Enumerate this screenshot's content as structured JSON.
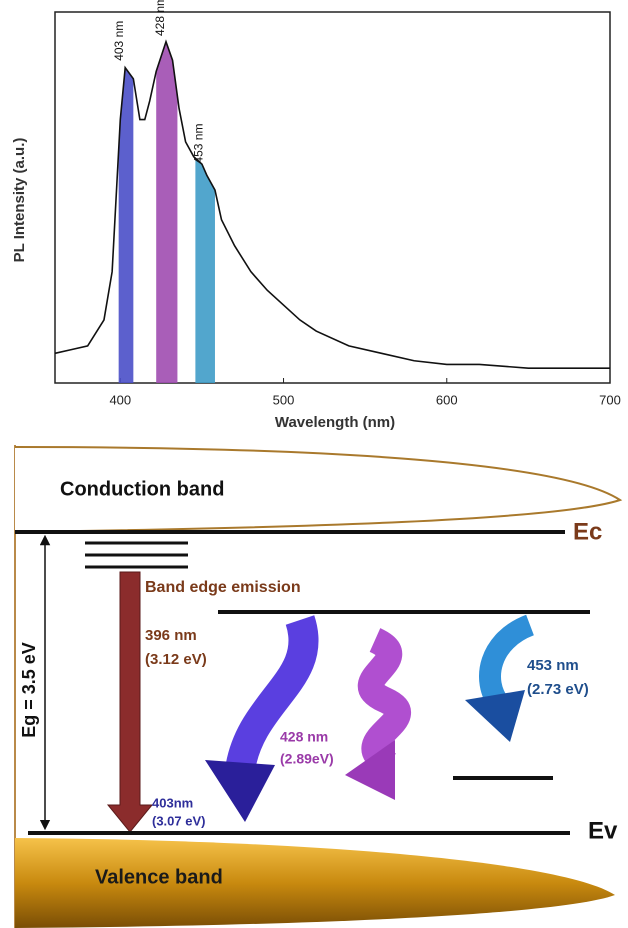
{
  "chart_data": {
    "type": "line",
    "xlabel": "Wavelength (nm)",
    "ylabel": "PL Intensity (a.u.)",
    "xlim": [
      360,
      700
    ],
    "xticks": [
      400,
      500,
      600,
      700
    ],
    "ylim": [
      0,
      1
    ],
    "x": [
      360,
      370,
      380,
      390,
      395,
      400,
      403,
      408,
      412,
      415,
      418,
      422,
      428,
      432,
      436,
      440,
      445,
      450,
      453,
      458,
      462,
      470,
      480,
      490,
      500,
      510,
      520,
      540,
      560,
      580,
      600,
      620,
      650,
      680,
      700
    ],
    "series": [
      {
        "color": "#111111",
        "values": [
          0.08,
          0.09,
          0.1,
          0.17,
          0.3,
          0.71,
          0.85,
          0.82,
          0.71,
          0.71,
          0.76,
          0.84,
          0.92,
          0.87,
          0.74,
          0.65,
          0.61,
          0.59,
          0.56,
          0.52,
          0.44,
          0.37,
          0.3,
          0.25,
          0.21,
          0.17,
          0.14,
          0.1,
          0.08,
          0.06,
          0.05,
          0.05,
          0.04,
          0.04,
          0.04
        ]
      }
    ],
    "bands": [
      {
        "label": "403 nm",
        "range": [
          399,
          408
        ],
        "color": "#4a4fc8"
      },
      {
        "label": "428 nm",
        "range": [
          422,
          435
        ],
        "color": "#a04db0"
      },
      {
        "label": "453 nm",
        "range": [
          446,
          458
        ],
        "color": "#3f9cc8"
      }
    ]
  },
  "diagram": {
    "conduction_band": "Conduction band",
    "ec": "Ec",
    "ev": "Ev",
    "valence_band": "Valence band",
    "eg": "Eg = 3.5 eV",
    "band_edge": "Band edge emission",
    "e396": {
      "nm": "396 nm",
      "ev": "(3.12 eV)"
    },
    "e428": {
      "nm": "428 nm",
      "ev": "(2.89eV)"
    },
    "e453": {
      "nm": "453 nm",
      "ev": "(2.73 eV)"
    },
    "e403": {
      "nm": "403nm",
      "ev": "(3.07 eV)"
    }
  }
}
